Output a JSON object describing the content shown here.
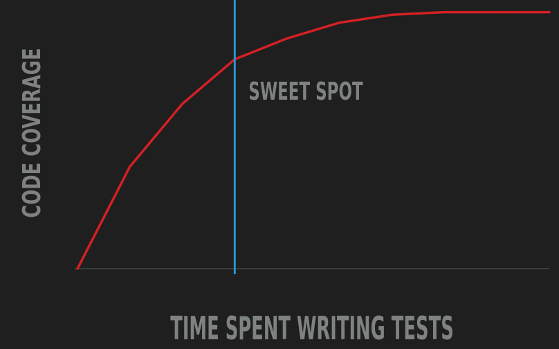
{
  "chart_data": {
    "type": "line",
    "title": "",
    "xlabel": "TIME SPENT WRITING TESTS",
    "ylabel": "CODE COVERAGE",
    "xlim": [
      0,
      9
    ],
    "ylim": [
      0,
      100
    ],
    "grid": false,
    "series": [
      {
        "color": "#d42025",
        "x": [
          0,
          1,
          2,
          3,
          4,
          5,
          6,
          7,
          8,
          9
        ],
        "y": [
          0,
          39,
          63,
          80,
          88,
          94,
          97,
          98,
          98,
          98
        ]
      }
    ],
    "annotations": [
      {
        "type": "vertical-line",
        "x": 3,
        "color": "#2a96d4",
        "label": "SWEET SPOT"
      }
    ]
  }
}
